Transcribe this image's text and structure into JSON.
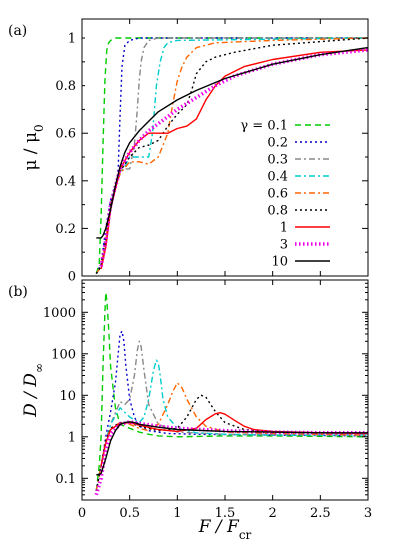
{
  "chart_data": [
    {
      "type": "line",
      "panel_label": "(a)",
      "xlim": [
        0,
        3
      ],
      "ylim": [
        0,
        1.08
      ],
      "yscale": "linear",
      "xlabel": "F / F_cr",
      "ylabel": "μ / μ0",
      "yticks": [
        "0",
        "0.2",
        "0.4",
        "0.6",
        "0.8",
        "1"
      ],
      "legend_title": "γ =",
      "legend_position": "center-right",
      "series": [
        {
          "name": "0.1",
          "color": "#00cc00",
          "dash": "dashed",
          "x": [
            0.15,
            0.18,
            0.2,
            0.22,
            0.24,
            0.26,
            0.28,
            0.3,
            0.35,
            0.4,
            0.5,
            0.7,
            1,
            2,
            3
          ],
          "y": [
            0.01,
            0.05,
            0.25,
            0.55,
            0.82,
            0.95,
            0.98,
            0.99,
            1,
            1,
            1,
            1,
            1,
            1,
            1
          ]
        },
        {
          "name": "0.2",
          "color": "#0000cc",
          "dash": "dotted",
          "x": [
            0.15,
            0.2,
            0.25,
            0.3,
            0.33,
            0.36,
            0.38,
            0.4,
            0.42,
            0.45,
            0.5,
            0.6,
            1,
            2,
            3
          ],
          "y": [
            0.01,
            0.05,
            0.2,
            0.32,
            0.36,
            0.38,
            0.45,
            0.68,
            0.88,
            0.97,
            0.99,
            1,
            1,
            1,
            1
          ]
        },
        {
          "name": "0.3",
          "color": "#888888",
          "dash": "dash-dot",
          "x": [
            0.15,
            0.2,
            0.25,
            0.3,
            0.35,
            0.4,
            0.45,
            0.5,
            0.55,
            0.58,
            0.6,
            0.62,
            0.65,
            0.7,
            0.8,
            1,
            3
          ],
          "y": [
            0.01,
            0.04,
            0.15,
            0.3,
            0.38,
            0.44,
            0.45,
            0.45,
            0.55,
            0.7,
            0.82,
            0.9,
            0.96,
            0.99,
            1,
            1,
            1
          ]
        },
        {
          "name": "0.4",
          "color": "#00cccc",
          "dash": "dash-dot",
          "x": [
            0.15,
            0.2,
            0.25,
            0.3,
            0.35,
            0.4,
            0.45,
            0.5,
            0.6,
            0.7,
            0.74,
            0.78,
            0.82,
            0.86,
            0.9,
            1,
            3
          ],
          "y": [
            0.01,
            0.04,
            0.15,
            0.3,
            0.37,
            0.43,
            0.46,
            0.5,
            0.5,
            0.5,
            0.6,
            0.8,
            0.9,
            0.96,
            0.98,
            0.99,
            1
          ]
        },
        {
          "name": "0.6",
          "color": "#ff6600",
          "dash": "dash-dot",
          "x": [
            0.15,
            0.2,
            0.25,
            0.3,
            0.35,
            0.4,
            0.5,
            0.6,
            0.7,
            0.8,
            0.9,
            0.95,
            1,
            1.05,
            1.1,
            1.2,
            1.4,
            2,
            3
          ],
          "y": [
            0.01,
            0.04,
            0.15,
            0.3,
            0.37,
            0.43,
            0.48,
            0.48,
            0.47,
            0.5,
            0.6,
            0.72,
            0.82,
            0.88,
            0.92,
            0.96,
            0.98,
            0.99,
            1
          ]
        },
        {
          "name": "0.8",
          "color": "#000000",
          "dash": "dotted",
          "x": [
            0.15,
            0.2,
            0.25,
            0.3,
            0.4,
            0.5,
            0.6,
            0.7,
            0.8,
            0.9,
            1,
            1.1,
            1.15,
            1.2,
            1.3,
            1.4,
            1.6,
            2,
            3
          ],
          "y": [
            0.01,
            0.04,
            0.15,
            0.3,
            0.44,
            0.5,
            0.54,
            0.55,
            0.57,
            0.63,
            0.68,
            0.72,
            0.78,
            0.85,
            0.9,
            0.92,
            0.94,
            0.97,
            1
          ]
        },
        {
          "name": "1",
          "color": "#ff0000",
          "dash": "solid",
          "x": [
            0.2,
            0.25,
            0.3,
            0.4,
            0.5,
            0.6,
            0.7,
            0.8,
            0.9,
            1,
            1.1,
            1.2,
            1.3,
            1.4,
            1.5,
            1.7,
            2,
            2.5,
            3
          ],
          "y": [
            0.03,
            0.12,
            0.28,
            0.45,
            0.52,
            0.57,
            0.6,
            0.6,
            0.6,
            0.62,
            0.63,
            0.66,
            0.74,
            0.8,
            0.84,
            0.88,
            0.91,
            0.94,
            0.95
          ]
        },
        {
          "name": "3",
          "color": "#ee00ee",
          "dash": "dotted-thick",
          "x": [
            0.2,
            0.25,
            0.3,
            0.4,
            0.5,
            0.6,
            0.7,
            0.8,
            1,
            1.2,
            1.4,
            1.6,
            2,
            2.5,
            3
          ],
          "y": [
            0.04,
            0.15,
            0.3,
            0.45,
            0.52,
            0.57,
            0.61,
            0.64,
            0.7,
            0.75,
            0.8,
            0.84,
            0.89,
            0.93,
            0.95
          ]
        },
        {
          "name": "10",
          "color": "#000000",
          "dash": "solid",
          "x": [
            0.15,
            0.18,
            0.2,
            0.22,
            0.25,
            0.3,
            0.35,
            0.4,
            0.45,
            0.5,
            0.6,
            0.7,
            0.8,
            1,
            1.2,
            1.5,
            2,
            2.5,
            3
          ],
          "y": [
            0.16,
            0.16,
            0.16,
            0.17,
            0.2,
            0.28,
            0.38,
            0.46,
            0.52,
            0.56,
            0.61,
            0.65,
            0.69,
            0.74,
            0.78,
            0.83,
            0.89,
            0.93,
            0.96
          ]
        }
      ]
    },
    {
      "type": "line",
      "panel_label": "(b)",
      "xlim": [
        0,
        3
      ],
      "xticks": [
        "0",
        "0.5",
        "1",
        "1.5",
        "2",
        "2.5",
        "3"
      ],
      "ylim": [
        0.03,
        6000
      ],
      "yscale": "log",
      "xlabel": "F / F_cr",
      "ylabel": "D / D∞",
      "yticks": [
        "0.1",
        "1",
        "10",
        "100",
        "1000"
      ],
      "series": [
        {
          "name": "0.1",
          "color": "#00cc00",
          "dash": "dashed",
          "x": [
            0.15,
            0.18,
            0.2,
            0.22,
            0.24,
            0.25,
            0.26,
            0.28,
            0.3,
            0.35,
            0.4,
            0.5,
            0.6,
            0.7,
            0.8,
            1,
            1.5,
            2,
            3
          ],
          "y": [
            0.05,
            0.2,
            1,
            50,
            1000,
            3000,
            2000,
            400,
            50,
            5,
            2,
            1.6,
            1.3,
            1.15,
            1.05,
            1,
            1.05,
            1.05,
            1
          ]
        },
        {
          "name": "0.2",
          "color": "#0000cc",
          "dash": "dotted",
          "x": [
            0.15,
            0.2,
            0.25,
            0.3,
            0.35,
            0.38,
            0.4,
            0.42,
            0.44,
            0.46,
            0.5,
            0.55,
            0.6,
            0.7,
            0.9,
            1.2,
            2,
            3
          ],
          "y": [
            0.05,
            0.2,
            1,
            4,
            20,
            100,
            300,
            350,
            200,
            50,
            8,
            3,
            1.8,
            1.4,
            1.2,
            1.15,
            1.1,
            1.05
          ]
        },
        {
          "name": "0.3",
          "color": "#888888",
          "dash": "dash-dot",
          "x": [
            0.15,
            0.2,
            0.25,
            0.3,
            0.4,
            0.45,
            0.5,
            0.55,
            0.58,
            0.6,
            0.62,
            0.65,
            0.7,
            0.8,
            1,
            1.5,
            3
          ],
          "y": [
            0.05,
            0.2,
            0.8,
            2,
            7,
            6,
            8,
            30,
            120,
            200,
            150,
            40,
            6,
            2,
            1.3,
            1.15,
            1.1
          ]
        },
        {
          "name": "0.4",
          "color": "#00cccc",
          "dash": "dash-dot",
          "x": [
            0.15,
            0.2,
            0.25,
            0.3,
            0.4,
            0.5,
            0.6,
            0.65,
            0.7,
            0.75,
            0.78,
            0.8,
            0.82,
            0.85,
            0.9,
            1,
            1.2,
            1.5,
            2,
            3
          ],
          "y": [
            0.05,
            0.2,
            0.8,
            2,
            5,
            3,
            2.2,
            3,
            8,
            40,
            70,
            60,
            30,
            8,
            3,
            1.6,
            1.25,
            1.15,
            1.1,
            1.1
          ]
        },
        {
          "name": "0.6",
          "color": "#ff6600",
          "dash": "dash-dot",
          "x": [
            0.15,
            0.2,
            0.25,
            0.3,
            0.4,
            0.5,
            0.6,
            0.7,
            0.8,
            0.9,
            0.95,
            1,
            1.05,
            1.1,
            1.2,
            1.3,
            1.5,
            2,
            3
          ],
          "y": [
            0.05,
            0.2,
            0.8,
            1.6,
            2.2,
            2,
            1.6,
            1.4,
            2,
            6,
            12,
            20,
            15,
            8,
            3,
            1.8,
            1.3,
            1.2,
            1.1
          ]
        },
        {
          "name": "0.8",
          "color": "#000000",
          "dash": "dotted",
          "x": [
            0.15,
            0.2,
            0.25,
            0.3,
            0.4,
            0.5,
            0.6,
            0.8,
            1,
            1.1,
            1.2,
            1.25,
            1.3,
            1.4,
            1.5,
            1.7,
            2,
            3
          ],
          "y": [
            0.05,
            0.2,
            0.8,
            1.6,
            2.2,
            2.2,
            1.8,
            1.4,
            1.6,
            3,
            8,
            10,
            9,
            4,
            2.2,
            1.5,
            1.3,
            1.2
          ]
        },
        {
          "name": "1",
          "color": "#ff0000",
          "dash": "solid",
          "x": [
            0.2,
            0.25,
            0.3,
            0.4,
            0.5,
            0.6,
            0.8,
            1,
            1.2,
            1.3,
            1.4,
            1.45,
            1.5,
            1.6,
            1.7,
            1.8,
            2,
            2.5,
            3
          ],
          "y": [
            0.2,
            0.7,
            1.5,
            2.1,
            2.2,
            1.9,
            1.5,
            1.35,
            1.6,
            2.6,
            3.6,
            3.8,
            3.5,
            2.5,
            1.8,
            1.5,
            1.35,
            1.25,
            1.2
          ]
        },
        {
          "name": "3",
          "color": "#ee00ee",
          "dash": "dotted-thick",
          "x": [
            0.15,
            0.2,
            0.25,
            0.3,
            0.4,
            0.5,
            0.6,
            0.8,
            1,
            1.5,
            2,
            2.5,
            3
          ],
          "y": [
            0.04,
            0.1,
            0.5,
            1.2,
            2,
            2.3,
            2.1,
            1.8,
            1.6,
            1.4,
            1.3,
            1.25,
            1.25
          ]
        },
        {
          "name": "10",
          "color": "#000000",
          "dash": "solid",
          "x": [
            0.15,
            0.2,
            0.25,
            0.3,
            0.35,
            0.4,
            0.45,
            0.5,
            0.55,
            0.6,
            0.8,
            1,
            1.5,
            2,
            2.5,
            3
          ],
          "y": [
            0.12,
            0.13,
            0.3,
            0.8,
            1.4,
            2,
            2.2,
            2.3,
            2.2,
            2,
            1.7,
            1.5,
            1.35,
            1.3,
            1.25,
            1.25
          ]
        }
      ]
    }
  ]
}
